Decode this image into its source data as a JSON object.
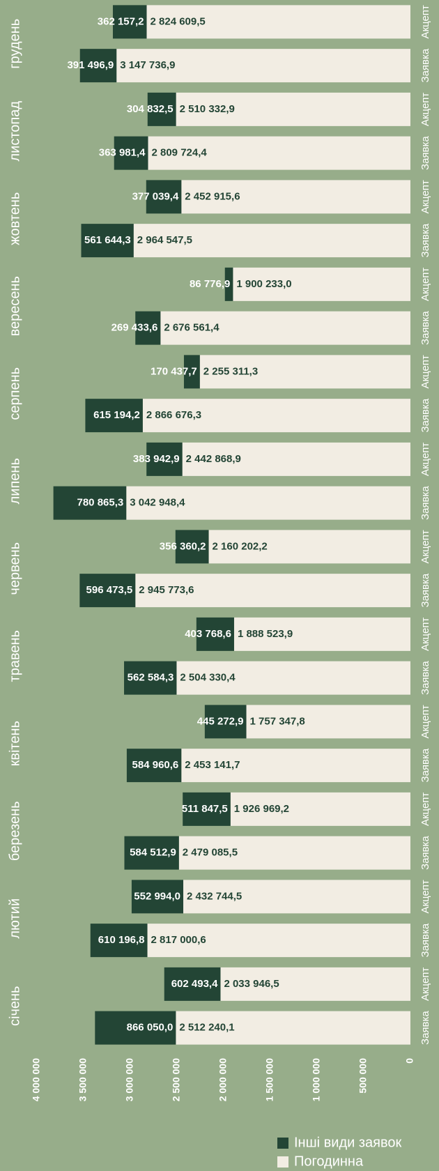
{
  "chart_data": {
    "type": "stacked-barh",
    "groups": [
      "грудень",
      "листопад",
      "жовтень",
      "вересень",
      "серпень",
      "липень",
      "червень",
      "травень",
      "квітень",
      "березень",
      "лютий",
      "січень"
    ],
    "categories": [
      "Акцепт",
      "Заявка",
      "Акцепт",
      "Заявка",
      "Акцепт",
      "Заявка",
      "Акцепт",
      "Заявка",
      "Акцепт",
      "Заявка",
      "Акцепт",
      "Заявка",
      "Акцепт",
      "Заявка",
      "Акцепт",
      "Заявка",
      "Акцепт",
      "Заявка",
      "Акцепт",
      "Заявка",
      "Акцепт",
      "Заявка",
      "Акцепт",
      "Заявка"
    ],
    "series": [
      {
        "name": "Погодинна",
        "color": "#f2ede3",
        "label_color": "#234535",
        "values": [
          2824609.5,
          3147736.9,
          2510332.9,
          2809724.4,
          2452915.6,
          2964547.5,
          1900233.0,
          2676561.4,
          2255311.3,
          2866676.3,
          2442868.9,
          3042948.4,
          2160202.2,
          2945773.6,
          1888523.9,
          2504330.4,
          1757347.8,
          2453141.7,
          1926969.2,
          2479085.5,
          2432744.5,
          2817000.6,
          2033946.5,
          2512240.1
        ],
        "value_labels": [
          "2 824 609,5",
          "3 147 736,9",
          "2 510 332,9",
          "2 809 724,4",
          "2 452 915,6",
          "2 964 547,5",
          "1 900 233,0",
          "2 676 561,4",
          "2 255 311,3",
          "2 866 676,3",
          "2 442 868,9",
          "3 042 948,4",
          "2 160 202,2",
          "2 945 773,6",
          "1 888 523,9",
          "2 504 330,4",
          "1 757 347,8",
          "2 453 141,7",
          "1 926 969,2",
          "2 479 085,5",
          "2 432 744,5",
          "2 817 000,6",
          "2 033 946,5",
          "2 512 240,1"
        ]
      },
      {
        "name": "Інші види заявок",
        "color": "#234535",
        "label_color": "#ffffff",
        "values": [
          362157.2,
          391496.9,
          304832.5,
          363981.4,
          377039.4,
          561644.3,
          86776.9,
          269433.6,
          170437.7,
          615194.2,
          383942.9,
          780865.3,
          356360.2,
          596473.5,
          403768.6,
          562584.3,
          445272.9,
          584960.6,
          511847.5,
          584512.9,
          552994.0,
          610196.8,
          602493.4,
          866050.0
        ],
        "value_labels": [
          "362 157,2",
          "391 496,9",
          "304 832,5",
          "363 981,4",
          "377 039,4",
          "561 644,3",
          "86 776,9",
          "269 433,6",
          "170 437,7",
          "615 194,2",
          "383 942,9",
          "780 865,3",
          "356 360,2",
          "596 473,5",
          "403 768,6",
          "562 584,3",
          "445 272,9",
          "584 960,6",
          "511 847,5",
          "584 512,9",
          "552 994,0",
          "610 196,8",
          "602 493,4",
          "866 050,0"
        ]
      }
    ],
    "xlim": [
      0,
      4000000
    ],
    "x_inverted": true,
    "xticks": [
      0,
      {
        "value": 500000,
        "label": "500 000"
      },
      {
        "value": 1000000,
        "label": "1 000 000"
      },
      {
        "value": 1500000,
        "label": "1 500 000"
      },
      {
        "value": 2000000,
        "label": "2 000 000"
      },
      {
        "value": 2500000,
        "label": "2 500 000"
      },
      {
        "value": 3000000,
        "label": "3 000 000"
      },
      {
        "value": 3500000,
        "label": "3 500 000"
      },
      {
        "value": 4000000,
        "label": "4 000 000"
      }
    ],
    "grid": false,
    "legend": "bottom"
  }
}
